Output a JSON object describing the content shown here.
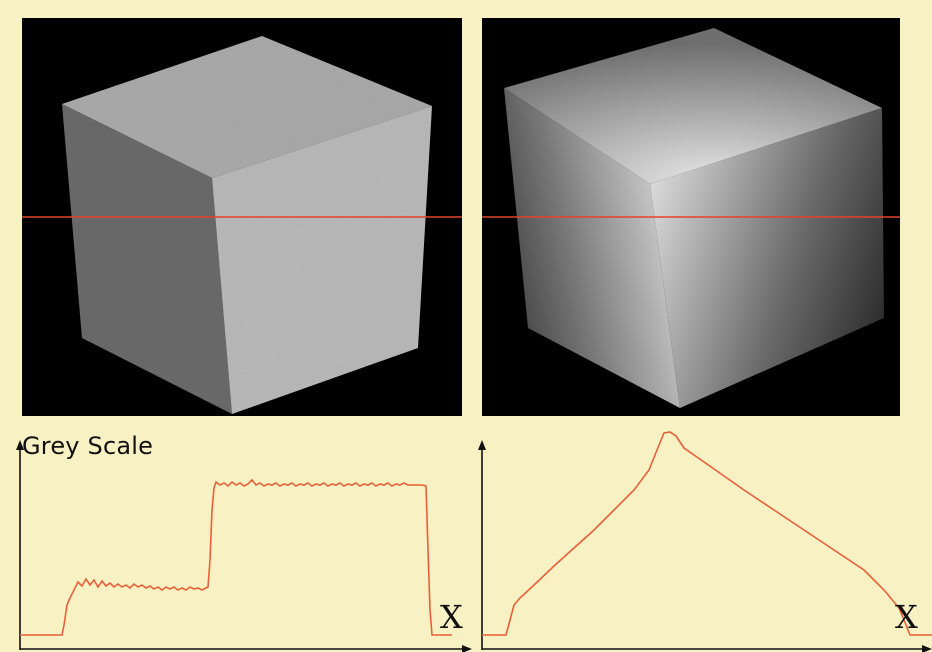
{
  "diagram": {
    "y_axis_label": "Grey Scale",
    "x_axis_label_left": "X",
    "x_axis_label_right": "X",
    "colors": {
      "background": "#f7f1c4",
      "profile_line": "#e8603a",
      "scan_line": "#e0442c",
      "image_background": "#000000"
    },
    "left_image": {
      "description_icon": "flat-shaded-cube-icon"
    },
    "right_image": {
      "description_icon": "gradient-shaded-cube-icon"
    }
  }
}
